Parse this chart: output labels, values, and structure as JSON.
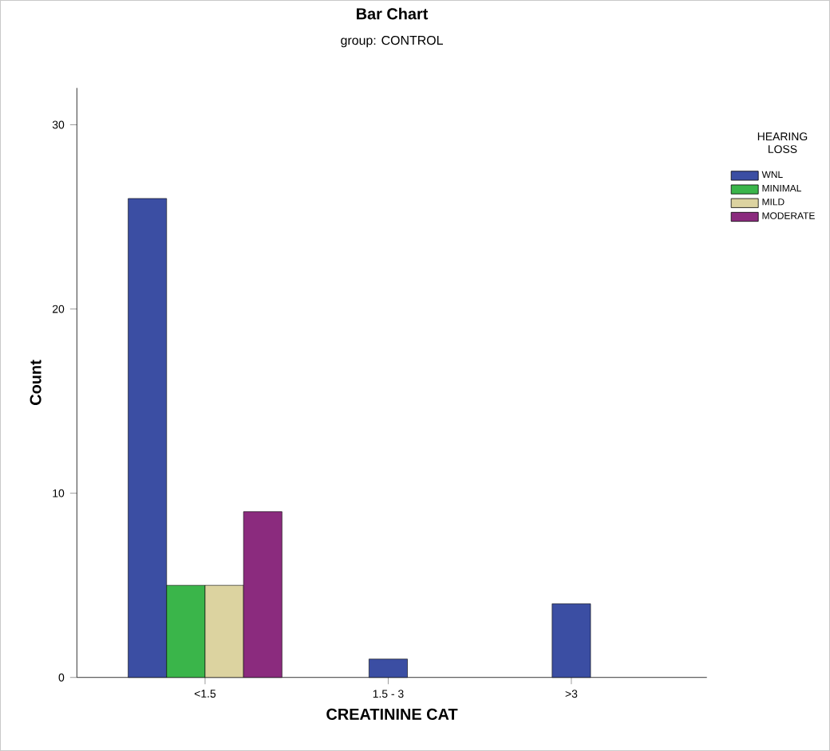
{
  "chart_data": {
    "type": "bar",
    "title": "Bar Chart",
    "subtitle": "group: CONTROL",
    "xlabel": "CREATININE CAT",
    "ylabel": "Count",
    "legend_title": "HEARING LOSS",
    "categories": [
      "<1.5",
      "1.5 - 3",
      ">3"
    ],
    "series": [
      {
        "name": "WNL",
        "color": "#3b4ea3",
        "values": [
          26,
          1,
          4
        ]
      },
      {
        "name": "MINIMAL",
        "color": "#3ab54a",
        "values": [
          5,
          null,
          null
        ]
      },
      {
        "name": "MILD",
        "color": "#dcd3a0",
        "values": [
          5,
          null,
          null
        ]
      },
      {
        "name": "MODERATE",
        "color": "#8b2b7e",
        "values": [
          9,
          null,
          null
        ]
      }
    ],
    "ylim": [
      0,
      32
    ],
    "yticks": [
      0,
      10,
      20,
      30
    ],
    "legend": "right"
  }
}
